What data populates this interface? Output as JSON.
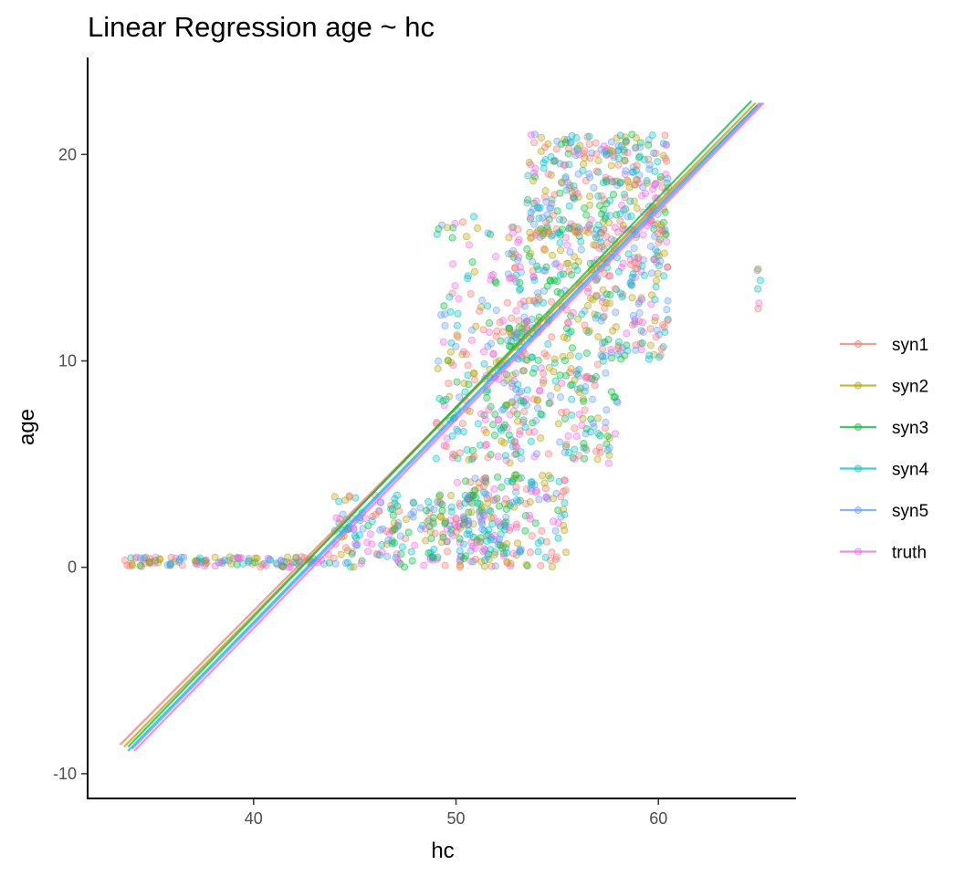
{
  "chart_data": {
    "type": "scatter",
    "title": "Linear Regression age ~ hc",
    "xlabel": "hc",
    "ylabel": "age",
    "xlim": [
      31.8,
      66.8
    ],
    "ylim": [
      -11.2,
      24.7
    ],
    "x_ticks": [
      40,
      50,
      60
    ],
    "y_ticks": [
      -10,
      0,
      10,
      20
    ],
    "grid": false,
    "legend": "right",
    "series": [
      {
        "name": "syn1",
        "color": "#F8766D",
        "fit": {
          "x": [
            33.4,
            65.0
          ],
          "y": [
            -8.6,
            22.5
          ]
        }
      },
      {
        "name": "syn2",
        "color": "#B79F00",
        "fit": {
          "x": [
            33.6,
            64.8
          ],
          "y": [
            -8.7,
            22.5
          ]
        }
      },
      {
        "name": "syn3",
        "color": "#00BA38",
        "fit": {
          "x": [
            33.8,
            64.6
          ],
          "y": [
            -8.7,
            22.6
          ]
        }
      },
      {
        "name": "syn4",
        "color": "#00BFC4",
        "fit": {
          "x": [
            33.8,
            64.9
          ],
          "y": [
            -8.9,
            22.4
          ]
        }
      },
      {
        "name": "syn5",
        "color": "#619CFF",
        "fit": {
          "x": [
            34.0,
            65.1
          ],
          "y": [
            -8.8,
            22.5
          ]
        }
      },
      {
        "name": "truth",
        "color": "#F564E3",
        "fit": {
          "x": [
            34.1,
            65.2
          ],
          "y": [
            -8.9,
            22.5
          ]
        }
      }
    ],
    "point_clusters": [
      {
        "x": [
          33.5,
          44.0
        ],
        "y": [
          0.0,
          0.5
        ],
        "n": 120
      },
      {
        "x": [
          44.0,
          52.5
        ],
        "y": [
          0.0,
          3.5
        ],
        "n": 260
      },
      {
        "x": [
          50.0,
          55.5
        ],
        "y": [
          0.0,
          4.5
        ],
        "n": 160
      },
      {
        "x": [
          49.0,
          53.5
        ],
        "y": [
          5.0,
          12.0
        ],
        "n": 160
      },
      {
        "x": [
          52.0,
          58.0
        ],
        "y": [
          5.0,
          10.0
        ],
        "n": 150
      },
      {
        "x": [
          52.5,
          60.5
        ],
        "y": [
          10.0,
          16.5
        ],
        "n": 360
      },
      {
        "x": [
          53.5,
          60.5
        ],
        "y": [
          16.0,
          21.0
        ],
        "n": 300
      },
      {
        "x": [
          49.0,
          52.0
        ],
        "y": [
          12.0,
          17.0
        ],
        "n": 40
      },
      {
        "x": [
          64.8,
          65.1
        ],
        "y": [
          12.5,
          14.6
        ],
        "n": 6
      }
    ]
  }
}
